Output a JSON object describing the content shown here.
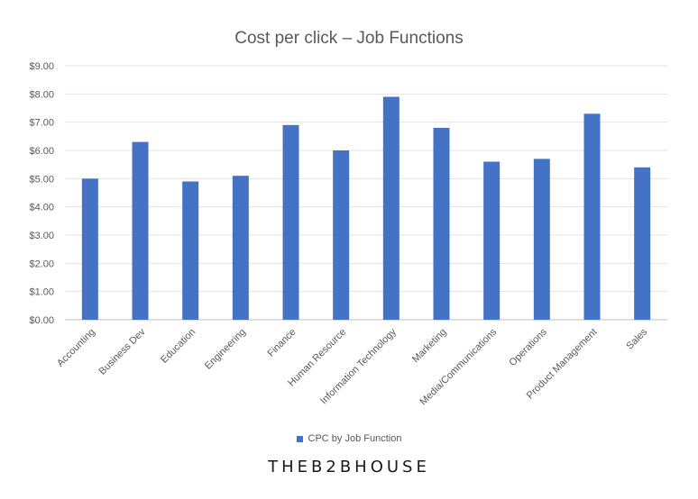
{
  "chart_data": {
    "type": "bar",
    "title": "Cost per click – Job Functions",
    "xlabel": "",
    "ylabel": "",
    "categories": [
      "Accounting",
      "Business Dev",
      "Education",
      "Engineering",
      "Finance",
      "Human Resource",
      "Information Technology",
      "Marketing",
      "Media/Communications",
      "Operations",
      "Product Management",
      "Sales"
    ],
    "series": [
      {
        "name": "CPC by Job Function",
        "color": "#4472C4",
        "values": [
          5.0,
          6.3,
          4.9,
          5.1,
          6.9,
          6.0,
          7.9,
          6.8,
          5.6,
          5.7,
          7.3,
          5.4
        ]
      }
    ],
    "ylim": [
      0,
      9
    ],
    "yticks": [
      "$0.00",
      "$1.00",
      "$2.00",
      "$3.00",
      "$4.00",
      "$5.00",
      "$6.00",
      "$7.00",
      "$8.00",
      "$9.00"
    ],
    "grid": true,
    "legend_position": "bottom"
  },
  "footer": {
    "brand": "THEB2BHOUSE"
  }
}
